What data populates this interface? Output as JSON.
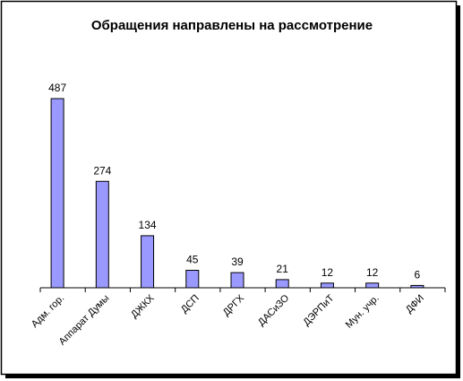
{
  "chart_data": {
    "type": "bar",
    "title": "Обращения направлены на рассмотрение",
    "xlabel": "",
    "ylabel": "",
    "categories": [
      "Адм. гор.",
      "Аппарат Думы",
      "ДЖКХ",
      "ДСП",
      "ДРГХ",
      "ДАСиЗО",
      "ДЭРПиТ",
      "Мун. учр.",
      "ДФИ"
    ],
    "values": [
      487,
      274,
      134,
      45,
      39,
      21,
      12,
      12,
      6
    ],
    "ylim": [
      0,
      487
    ],
    "grid": false,
    "legend": "none",
    "colors": {
      "bar_fill": "#9999ff",
      "bar_stroke": "#000000",
      "axis": "#000000",
      "frame_border": "#000000",
      "frame_shadow": "#000000"
    }
  }
}
